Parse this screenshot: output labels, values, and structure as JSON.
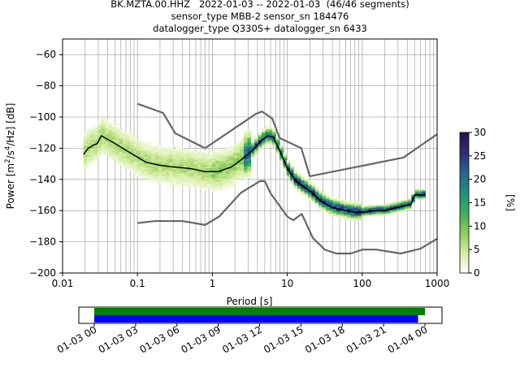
{
  "title": {
    "line1": "BK.MZTA.00.HHZ   2022-01-03 -- 2022-01-03  (46/46 segments)",
    "line2": "sensor_type MBB-2 sensor_sn 184476",
    "line3": "datalogger_type Q330S+ datalogger_sn 6433"
  },
  "chart_data": [
    {
      "type": "heatmap",
      "subtype": "probabilistic-power-spectral-density",
      "xlabel": "Period [s]",
      "ylabel": "Power [m²/s⁴/Hz] [dB]",
      "xscale": "log",
      "xlim": [
        0.01,
        1000
      ],
      "ylim": [
        -200,
        -50
      ],
      "xticks": [
        0.01,
        0.1,
        1,
        10,
        100,
        1000
      ],
      "xtick_labels": [
        "0.01",
        "0.1",
        "1",
        "10",
        "100",
        "1000"
      ],
      "yticks": [
        -200,
        -180,
        -160,
        -140,
        -120,
        -100,
        -80,
        -60
      ],
      "grid": true,
      "colorbar": {
        "label": "[%]",
        "range": [
          0,
          30
        ],
        "ticks": [
          0,
          5,
          10,
          15,
          20,
          25,
          30
        ],
        "colormap": [
          "#ffffff",
          "#d6eda2",
          "#8fcc5a",
          "#3aae5e",
          "#1f8f80",
          "#29628f",
          "#2c2f75",
          "#2d0f4a"
        ]
      },
      "series": [
        {
          "role": "mode",
          "color": "#000000",
          "x": [
            0.019,
            0.022,
            0.026,
            0.029,
            0.033,
            0.05,
            0.08,
            0.13,
            0.2,
            0.3,
            0.5,
            0.8,
            1.2,
            1.8,
            2.5,
            3.5,
            4.5,
            5.5,
            6.5,
            8,
            10,
            13,
            17,
            22,
            28,
            40,
            60,
            80,
            100,
            150,
            200,
            300,
            450,
            500,
            700
          ],
          "y": [
            -124,
            -120,
            -118,
            -117,
            -112,
            -117,
            -123,
            -129,
            -131,
            -132,
            -133,
            -135,
            -135,
            -132,
            -127,
            -121,
            -115,
            -112,
            -113,
            -122,
            -133,
            -141,
            -145,
            -149,
            -154,
            -158,
            -160,
            -161,
            -161,
            -160,
            -160,
            -158,
            -156,
            -150,
            -150
          ]
        },
        {
          "role": "noise-model-high",
          "color": "#666666",
          "x": [
            0.1,
            0.22,
            0.32,
            0.8,
            3.8,
            4.6,
            6.3,
            7.9,
            15.4,
            20,
            354.8,
            1000
          ],
          "y": [
            -91.5,
            -97.4,
            -110.5,
            -120,
            -98,
            -96.5,
            -101,
            -113.5,
            -120,
            -138,
            -126,
            -111
          ]
        },
        {
          "role": "noise-model-low",
          "color": "#666666",
          "x": [
            0.1,
            0.17,
            0.4,
            0.8,
            1.24,
            2.4,
            4.3,
            5.0,
            6.0,
            10.0,
            12.0,
            15.6,
            21.9,
            31.6,
            45.0,
            70.0,
            101.0,
            154.0,
            328.0,
            600.0,
            1000.0
          ],
          "y": [
            -168,
            -166.7,
            -166.7,
            -169.2,
            -163.7,
            -148.6,
            -141.1,
            -141.1,
            -149,
            -163.8,
            -166.2,
            -162.1,
            -177.5,
            -185,
            -187.5,
            -187.5,
            -185,
            -185,
            -187.5,
            -184.4,
            -178
          ]
        }
      ]
    },
    {
      "type": "bar",
      "subtype": "data-availability",
      "xlim": [
        "2022-01-03 00:00",
        "2022-01-04 01:00"
      ],
      "xtick_labels": [
        "01-03 00",
        "01-03 03",
        "01-03 06",
        "01-03 09",
        "01-03 12",
        "01-03 15",
        "01-03 18",
        "01-03 21",
        "01-04 00"
      ],
      "series": [
        {
          "color": "#008000",
          "start": "2022-01-03 00:00",
          "end": "2022-01-04 00:00"
        },
        {
          "color": "#0000ff",
          "start": "2022-01-03 00:00",
          "end": "2022-01-03 23:30"
        }
      ]
    }
  ]
}
